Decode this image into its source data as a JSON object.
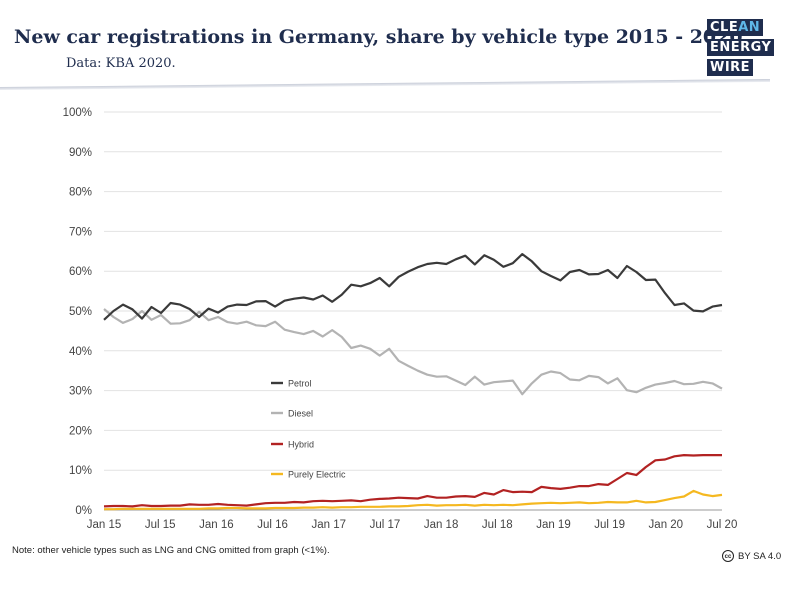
{
  "title": "New car registrations in Germany, share by vehicle type 2015 - 2020.",
  "subtitle": "Data: KBA 2020.",
  "logo": {
    "line1_a": "CLE",
    "line1_b": "AN",
    "line2": "ENERGY",
    "line3": "WIRE"
  },
  "note": "Note: other vehicle types such as LNG and CNG omitted from graph (<1%).",
  "license": "BY SA 4.0",
  "license_icon": "creative-commons-icon",
  "chart_data": {
    "type": "line",
    "title": "New car registrations in Germany, share by vehicle type 2015 - 2020.",
    "xlabel": "",
    "ylabel": "",
    "ylim": [
      0,
      100
    ],
    "yticks": [
      "0%",
      "10%",
      "20%",
      "30%",
      "40%",
      "50%",
      "60%",
      "70%",
      "80%",
      "90%",
      "100%"
    ],
    "xticks": [
      "Jan 15",
      "Jul 15",
      "Jan 16",
      "Jul 16",
      "Jan 17",
      "Jul 17",
      "Jan 18",
      "Jul 18",
      "Jan 19",
      "Jul 19",
      "Jan 20",
      "Jul 20"
    ],
    "x_start": "Jan 15",
    "x_end": "Jul 20",
    "grid": true,
    "legend_position": "center-left",
    "series": [
      {
        "name": "Petrol",
        "color": "#3a3a3a",
        "values": [
          47.8,
          50.0,
          51.6,
          50.4,
          48.1,
          51.0,
          49.5,
          52.0,
          51.6,
          50.5,
          48.5,
          50.6,
          49.6,
          51.1,
          51.6,
          51.5,
          52.4,
          52.5,
          51.1,
          52.6,
          53.1,
          53.4,
          52.9,
          53.9,
          52.3,
          54.1,
          56.6,
          56.2,
          57.0,
          58.3,
          56.2,
          58.6,
          59.9,
          61.0,
          61.8,
          62.1,
          61.8,
          63.0,
          63.9,
          61.7,
          64.0,
          62.9,
          61.1,
          62.0,
          64.3,
          62.5,
          60.0,
          58.8,
          57.7,
          59.8,
          60.3,
          59.2,
          59.3,
          60.3,
          58.3,
          61.3,
          59.8,
          57.8,
          57.9,
          54.5,
          51.5,
          51.9,
          50.1,
          49.9,
          51.1,
          51.5
        ]
      },
      {
        "name": "Diesel",
        "color": "#b3b3b3",
        "values": [
          50.5,
          48.5,
          47.0,
          48.0,
          50.0,
          47.8,
          49.0,
          46.8,
          46.9,
          47.7,
          49.8,
          47.7,
          48.5,
          47.2,
          46.8,
          47.3,
          46.4,
          46.2,
          47.3,
          45.3,
          44.7,
          44.2,
          45.0,
          43.6,
          45.2,
          43.5,
          40.7,
          41.3,
          40.5,
          38.8,
          40.5,
          37.5,
          36.2,
          35.0,
          34.0,
          33.5,
          33.6,
          32.5,
          31.4,
          33.5,
          31.5,
          32.1,
          32.3,
          32.5,
          29.1,
          31.8,
          34.0,
          34.8,
          34.4,
          32.8,
          32.6,
          33.7,
          33.4,
          31.8,
          33.1,
          30.1,
          29.6,
          30.7,
          31.5,
          31.9,
          32.4,
          31.6,
          31.7,
          32.2,
          31.8,
          30.5
        ]
      },
      {
        "name": "Hybrid",
        "color": "#b22222",
        "values": [
          0.9,
          1.0,
          1.0,
          0.9,
          1.2,
          1.0,
          1.0,
          1.1,
          1.1,
          1.4,
          1.3,
          1.3,
          1.5,
          1.3,
          1.2,
          1.1,
          1.4,
          1.7,
          1.8,
          1.8,
          2.0,
          1.9,
          2.2,
          2.3,
          2.2,
          2.3,
          2.4,
          2.2,
          2.6,
          2.8,
          2.9,
          3.1,
          3.0,
          2.9,
          3.5,
          3.1,
          3.1,
          3.4,
          3.5,
          3.3,
          4.3,
          3.9,
          5.0,
          4.5,
          4.6,
          4.5,
          5.8,
          5.5,
          5.3,
          5.6,
          6.0,
          6.0,
          6.5,
          6.3,
          7.8,
          9.3,
          8.8,
          10.8,
          12.5,
          12.7,
          13.5,
          13.8,
          13.7,
          13.8,
          13.8,
          13.8
        ]
      },
      {
        "name": "Purely Electric",
        "color": "#f5b820",
        "values": [
          0.2,
          0.2,
          0.3,
          0.3,
          0.3,
          0.3,
          0.3,
          0.3,
          0.3,
          0.3,
          0.3,
          0.4,
          0.4,
          0.5,
          0.5,
          0.4,
          0.4,
          0.4,
          0.5,
          0.5,
          0.5,
          0.6,
          0.6,
          0.7,
          0.6,
          0.7,
          0.7,
          0.8,
          0.8,
          0.8,
          0.9,
          0.9,
          1.0,
          1.2,
          1.3,
          1.1,
          1.2,
          1.2,
          1.3,
          1.1,
          1.3,
          1.2,
          1.3,
          1.2,
          1.4,
          1.6,
          1.7,
          1.8,
          1.7,
          1.8,
          1.9,
          1.7,
          1.8,
          2.0,
          1.9,
          1.9,
          2.3,
          1.9,
          2.0,
          2.5,
          3.0,
          3.4,
          4.8,
          3.9,
          3.5,
          3.8
        ]
      }
    ]
  }
}
